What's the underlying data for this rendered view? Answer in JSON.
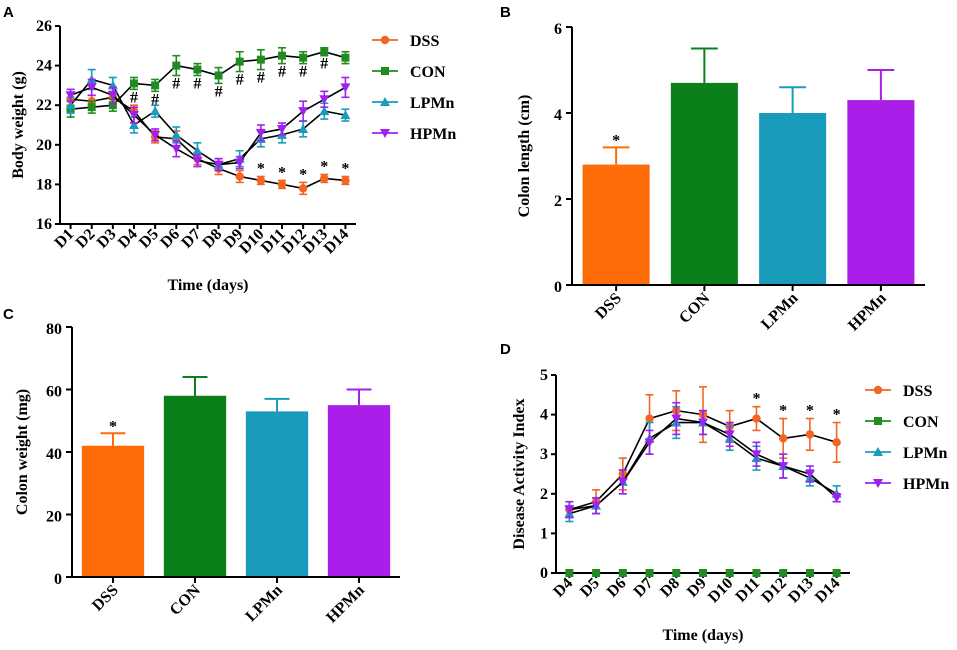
{
  "chart_data": [
    {
      "panel": "A",
      "type": "line",
      "xlabel": "Time (days)",
      "ylabel": "Body weight (g)",
      "categories": [
        "D1",
        "D2",
        "D3",
        "D4",
        "D5",
        "D6",
        "D7",
        "D8",
        "D9",
        "D10",
        "D11",
        "D12",
        "D13",
        "D14"
      ],
      "ylim": [
        16,
        26
      ],
      "yticks": [
        16,
        18,
        20,
        22,
        24,
        26
      ],
      "series": [
        {
          "name": "DSS",
          "color": "#f26522",
          "marker": "circle",
          "values": [
            22.3,
            22.2,
            22.4,
            21.7,
            20.4,
            20.3,
            19.3,
            18.8,
            18.4,
            18.2,
            18.0,
            17.8,
            18.3,
            18.2
          ],
          "errors": [
            0.3,
            0.3,
            0.3,
            0.3,
            0.3,
            0.4,
            0.3,
            0.3,
            0.3,
            0.2,
            0.2,
            0.3,
            0.2,
            0.2
          ]
        },
        {
          "name": "CON",
          "color": "#218b21",
          "marker": "square",
          "values": [
            21.8,
            21.9,
            22.0,
            23.1,
            23.0,
            24.0,
            23.8,
            23.5,
            24.2,
            24.3,
            24.5,
            24.4,
            24.7,
            24.4
          ],
          "errors": [
            0.4,
            0.3,
            0.3,
            0.3,
            0.3,
            0.5,
            0.3,
            0.4,
            0.5,
            0.5,
            0.4,
            0.3,
            0.2,
            0.3
          ]
        },
        {
          "name": "LPMn",
          "color": "#1a9bbb",
          "marker": "triangle",
          "values": [
            22.0,
            23.3,
            23.0,
            21.0,
            21.7,
            20.5,
            19.7,
            19.0,
            19.3,
            20.3,
            20.5,
            20.8,
            21.7,
            21.5
          ],
          "errors": [
            0.4,
            0.5,
            0.4,
            0.4,
            0.3,
            0.4,
            0.4,
            0.3,
            0.4,
            0.4,
            0.4,
            0.4,
            0.4,
            0.3
          ]
        },
        {
          "name": "HPMn",
          "color": "#a020f0",
          "marker": "triangle-down",
          "values": [
            22.5,
            22.9,
            22.5,
            21.5,
            20.5,
            19.8,
            19.2,
            19.0,
            19.1,
            20.6,
            20.8,
            21.7,
            22.3,
            22.9
          ],
          "errors": [
            0.3,
            0.4,
            0.4,
            0.4,
            0.3,
            0.4,
            0.3,
            0.3,
            0.3,
            0.4,
            0.3,
            0.5,
            0.4,
            0.5
          ]
        }
      ],
      "annotations": [
        {
          "text": "#",
          "days": [
            "D4",
            "D5",
            "D6",
            "D7",
            "D8",
            "D9",
            "D10",
            "D11",
            "D12",
            "D13"
          ]
        },
        {
          "text": "*",
          "days": [
            "D10",
            "D11",
            "D12",
            "D13",
            "D14"
          ]
        }
      ],
      "legend_position": "right"
    },
    {
      "panel": "B",
      "type": "bar",
      "ylabel": "Colon length (cm)",
      "categories": [
        "DSS",
        "CON",
        "LPMn",
        "HPMn"
      ],
      "values": [
        2.8,
        4.7,
        4.0,
        4.3
      ],
      "errors": [
        0.4,
        0.8,
        0.6,
        0.7
      ],
      "colors": [
        "#fe6c08",
        "#0b7f1a",
        "#1a9bbb",
        "#a91ee8"
      ],
      "ylim": [
        0,
        6
      ],
      "yticks": [
        0,
        2,
        4,
        6
      ],
      "annotations": [
        {
          "category": "DSS",
          "text": "*"
        }
      ]
    },
    {
      "panel": "C",
      "type": "bar",
      "ylabel": "Colon weight (mg)",
      "categories": [
        "DSS",
        "CON",
        "LPMn",
        "HPMn"
      ],
      "values": [
        42,
        58,
        53,
        55
      ],
      "errors": [
        4,
        6,
        4,
        5
      ],
      "colors": [
        "#fe6c08",
        "#0b7f1a",
        "#1a9bbb",
        "#a91ee8"
      ],
      "ylim": [
        0,
        80
      ],
      "yticks": [
        0,
        20,
        40,
        60,
        80
      ],
      "annotations": [
        {
          "category": "DSS",
          "text": "*"
        }
      ]
    },
    {
      "panel": "D",
      "type": "line",
      "xlabel": "Time (days)",
      "ylabel": "Disease Activity Index",
      "categories": [
        "D4",
        "D5",
        "D6",
        "D7",
        "D8",
        "D9",
        "D10",
        "D11",
        "D12",
        "D13",
        "D14"
      ],
      "ylim": [
        0,
        5
      ],
      "yticks": [
        0,
        1,
        2,
        3,
        4,
        5
      ],
      "series": [
        {
          "name": "DSS",
          "color": "#f26522",
          "marker": "circle",
          "values": [
            1.6,
            1.8,
            2.5,
            3.9,
            4.1,
            4.0,
            3.7,
            3.9,
            3.4,
            3.5,
            3.3
          ],
          "errors": [
            0.2,
            0.3,
            0.4,
            0.6,
            0.5,
            0.7,
            0.4,
            0.3,
            0.5,
            0.4,
            0.5
          ]
        },
        {
          "name": "CON",
          "color": "#218b21",
          "marker": "square",
          "values": [
            0,
            0,
            0,
            0,
            0,
            0,
            0,
            0,
            0,
            0,
            0
          ],
          "errors": [
            0,
            0,
            0,
            0,
            0,
            0,
            0,
            0,
            0,
            0,
            0
          ]
        },
        {
          "name": "LPMn",
          "color": "#1a9bbb",
          "marker": "triangle",
          "values": [
            1.5,
            1.7,
            2.3,
            3.4,
            3.8,
            3.8,
            3.4,
            2.9,
            2.7,
            2.4,
            2.0
          ],
          "errors": [
            0.2,
            0.2,
            0.3,
            0.4,
            0.4,
            0.3,
            0.3,
            0.3,
            0.3,
            0.2,
            0.2
          ]
        },
        {
          "name": "HPMn",
          "color": "#a020f0",
          "marker": "triangle-down",
          "values": [
            1.6,
            1.7,
            2.3,
            3.3,
            3.9,
            3.8,
            3.5,
            3.0,
            2.7,
            2.5,
            1.9
          ],
          "errors": [
            0.2,
            0.2,
            0.3,
            0.3,
            0.4,
            0.3,
            0.3,
            0.3,
            0.3,
            0.2,
            0.1
          ]
        }
      ],
      "annotations": [
        {
          "text": "*",
          "days": [
            "D11",
            "D12",
            "D13",
            "D14"
          ]
        }
      ],
      "legend_position": "right"
    }
  ]
}
